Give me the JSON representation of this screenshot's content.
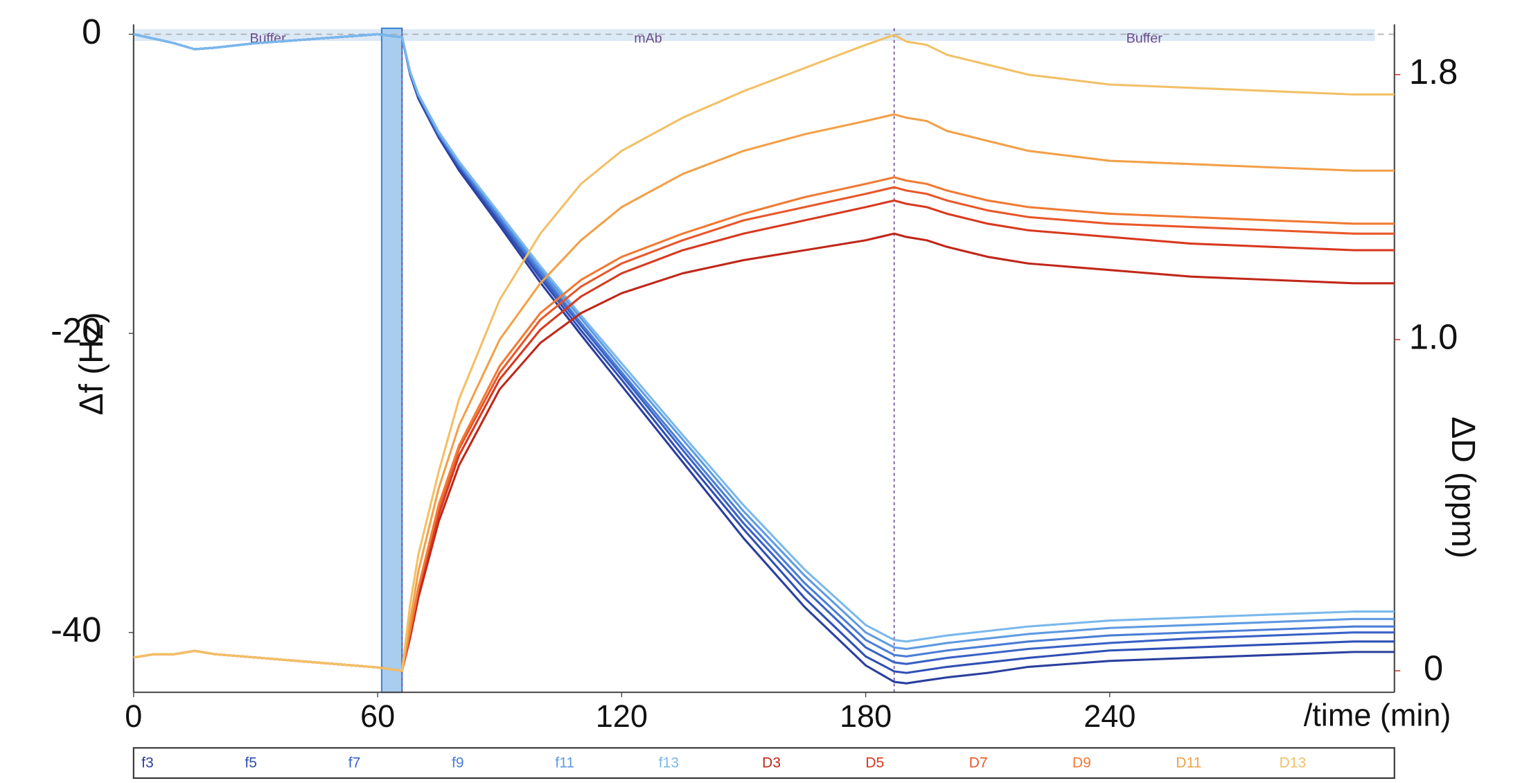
{
  "chart_data": {
    "type": "line",
    "ylabel": "Δf (Hz)",
    "y2label": "ΔD (ppm)",
    "xlabel": "/time (min)",
    "xlim": [
      0,
      310
    ],
    "ylim": [
      -44,
      0.4
    ],
    "y2lim": [
      -0.065,
      1.94
    ],
    "xticks": [
      0,
      60,
      120,
      180,
      240
    ],
    "yticks": [
      0,
      -20,
      -40
    ],
    "y2ticks": [
      0,
      {
        "value": 1,
        "label": "1.0"
      },
      1.8
    ],
    "phases": [
      {
        "label": "Buffer",
        "start": 0,
        "end": 66
      },
      {
        "label": "mAb",
        "start": 66,
        "end": 187
      },
      {
        "label": "Buffer",
        "start": 187,
        "end": 310
      }
    ],
    "highlight_x": [
      61,
      66
    ],
    "x": [
      0,
      5,
      10,
      15,
      20,
      30,
      40,
      50,
      60,
      66,
      68,
      70,
      75,
      80,
      90,
      100,
      110,
      120,
      135,
      150,
      165,
      180,
      187,
      190,
      195,
      200,
      210,
      220,
      240,
      260,
      280,
      300,
      310
    ],
    "series": [
      {
        "name": "f3",
        "color": "#2a3f9e",
        "values": [
          0,
          -0.3,
          -0.6,
          -1.0,
          -0.9,
          -0.6,
          -0.4,
          -0.2,
          0,
          -0.2,
          -2.7,
          -4.3,
          -6.9,
          -9.1,
          -12.8,
          -16.6,
          -20.1,
          -23.5,
          -28.6,
          -33.7,
          -38.3,
          -42.2,
          -43.3,
          -43.4,
          -43.2,
          -43.0,
          -42.7,
          -42.3,
          -41.9,
          -41.7,
          -41.5,
          -41.3,
          -41.3
        ]
      },
      {
        "name": "f5",
        "color": "#2f4fb5",
        "values": [
          0,
          -0.3,
          -0.6,
          -1.0,
          -0.9,
          -0.6,
          -0.4,
          -0.2,
          0,
          -0.2,
          -2.6,
          -4.2,
          -6.8,
          -8.9,
          -12.6,
          -16.3,
          -19.8,
          -23.1,
          -28.2,
          -33.1,
          -37.7,
          -41.6,
          -42.6,
          -42.7,
          -42.5,
          -42.3,
          -42.0,
          -41.7,
          -41.2,
          -41.0,
          -40.8,
          -40.6,
          -40.6
        ]
      },
      {
        "name": "f7",
        "color": "#3a62c6",
        "values": [
          0,
          -0.3,
          -0.6,
          -1.0,
          -0.9,
          -0.6,
          -0.4,
          -0.2,
          0,
          -0.2,
          -2.6,
          -4.1,
          -6.7,
          -8.8,
          -12.4,
          -16.1,
          -19.5,
          -22.8,
          -27.8,
          -32.7,
          -37.1,
          -41.0,
          -42.0,
          -42.1,
          -41.9,
          -41.7,
          -41.4,
          -41.1,
          -40.7,
          -40.4,
          -40.2,
          -40.0,
          -40.0
        ]
      },
      {
        "name": "f9",
        "color": "#4a7ed6",
        "values": [
          0,
          -0.3,
          -0.6,
          -1.0,
          -0.9,
          -0.6,
          -0.4,
          -0.2,
          0,
          -0.2,
          -2.6,
          -4.1,
          -6.7,
          -8.7,
          -12.3,
          -15.9,
          -19.3,
          -22.6,
          -27.5,
          -32.3,
          -36.7,
          -40.5,
          -41.5,
          -41.6,
          -41.4,
          -41.2,
          -40.9,
          -40.6,
          -40.2,
          -40.0,
          -39.8,
          -39.6,
          -39.6
        ]
      },
      {
        "name": "f11",
        "color": "#5e9ae2",
        "values": [
          0,
          -0.3,
          -0.6,
          -1.0,
          -0.9,
          -0.6,
          -0.4,
          -0.2,
          0,
          -0.2,
          -2.5,
          -4.0,
          -6.6,
          -8.6,
          -12.1,
          -15.7,
          -19.0,
          -22.3,
          -27.1,
          -31.9,
          -36.2,
          -40.0,
          -41.0,
          -41.1,
          -40.9,
          -40.7,
          -40.4,
          -40.1,
          -39.7,
          -39.5,
          -39.3,
          -39.1,
          -39.1
        ]
      },
      {
        "name": "f13",
        "color": "#7ab8ec",
        "values": [
          0,
          -0.3,
          -0.6,
          -1.0,
          -0.9,
          -0.6,
          -0.4,
          -0.2,
          0,
          -0.2,
          -2.5,
          -4,
          -6.5,
          -8.5,
          -12,
          -15.5,
          -18.8,
          -22,
          -26.8,
          -31.5,
          -35.8,
          -39.5,
          -40.5,
          -40.6,
          -40.4,
          -40.2,
          -39.9,
          -39.6,
          -39.2,
          -39.0,
          -38.8,
          -38.6,
          -38.6
        ]
      },
      {
        "name": "D3",
        "color": "#c0271a",
        "axis": "y2",
        "values": [
          0.04,
          0.05,
          0.05,
          0.06,
          0.05,
          0.04,
          0.03,
          0.02,
          0.01,
          0,
          0.1,
          0.22,
          0.45,
          0.62,
          0.85,
          0.99,
          1.08,
          1.14,
          1.2,
          1.24,
          1.27,
          1.3,
          1.32,
          1.31,
          1.3,
          1.28,
          1.25,
          1.23,
          1.21,
          1.19,
          1.18,
          1.17,
          1.17
        ]
      },
      {
        "name": "D5",
        "color": "#d8391f",
        "axis": "y2",
        "values": [
          0.04,
          0.05,
          0.05,
          0.06,
          0.05,
          0.04,
          0.03,
          0.02,
          0.01,
          0,
          0.11,
          0.24,
          0.47,
          0.65,
          0.88,
          1.03,
          1.13,
          1.2,
          1.27,
          1.32,
          1.36,
          1.4,
          1.42,
          1.41,
          1.4,
          1.38,
          1.35,
          1.33,
          1.31,
          1.29,
          1.28,
          1.27,
          1.27
        ]
      },
      {
        "name": "D7",
        "color": "#e8572a",
        "axis": "y2",
        "values": [
          0.04,
          0.05,
          0.05,
          0.06,
          0.05,
          0.04,
          0.03,
          0.02,
          0.01,
          0,
          0.12,
          0.25,
          0.49,
          0.67,
          0.9,
          1.06,
          1.16,
          1.23,
          1.3,
          1.36,
          1.4,
          1.44,
          1.46,
          1.45,
          1.44,
          1.42,
          1.39,
          1.37,
          1.35,
          1.34,
          1.33,
          1.32,
          1.32
        ]
      },
      {
        "name": "D9",
        "color": "#f07a34",
        "axis": "y2",
        "values": [
          0.04,
          0.05,
          0.05,
          0.06,
          0.05,
          0.04,
          0.03,
          0.02,
          0.01,
          0,
          0.12,
          0.25,
          0.5,
          0.68,
          0.92,
          1.08,
          1.18,
          1.25,
          1.32,
          1.38,
          1.43,
          1.47,
          1.49,
          1.48,
          1.47,
          1.45,
          1.42,
          1.4,
          1.38,
          1.37,
          1.36,
          1.35,
          1.35
        ]
      },
      {
        "name": "D11",
        "color": "#f3a048",
        "axis": "y2",
        "values": [
          0.04,
          0.05,
          0.05,
          0.06,
          0.05,
          0.04,
          0.03,
          0.02,
          0.01,
          0,
          0.15,
          0.3,
          0.55,
          0.74,
          1.0,
          1.17,
          1.3,
          1.4,
          1.5,
          1.57,
          1.62,
          1.66,
          1.68,
          1.67,
          1.66,
          1.63,
          1.6,
          1.57,
          1.54,
          1.53,
          1.52,
          1.51,
          1.51
        ]
      },
      {
        "name": "D13",
        "color": "#f2c066",
        "axis": "y2",
        "values": [
          0.04,
          0.05,
          0.05,
          0.06,
          0.05,
          0.04,
          0.03,
          0.02,
          0.01,
          0,
          0.2,
          0.35,
          0.6,
          0.82,
          1.12,
          1.32,
          1.47,
          1.57,
          1.67,
          1.75,
          1.82,
          1.89,
          1.92,
          1.9,
          1.89,
          1.86,
          1.83,
          1.8,
          1.77,
          1.76,
          1.75,
          1.74,
          1.74
        ]
      }
    ]
  }
}
